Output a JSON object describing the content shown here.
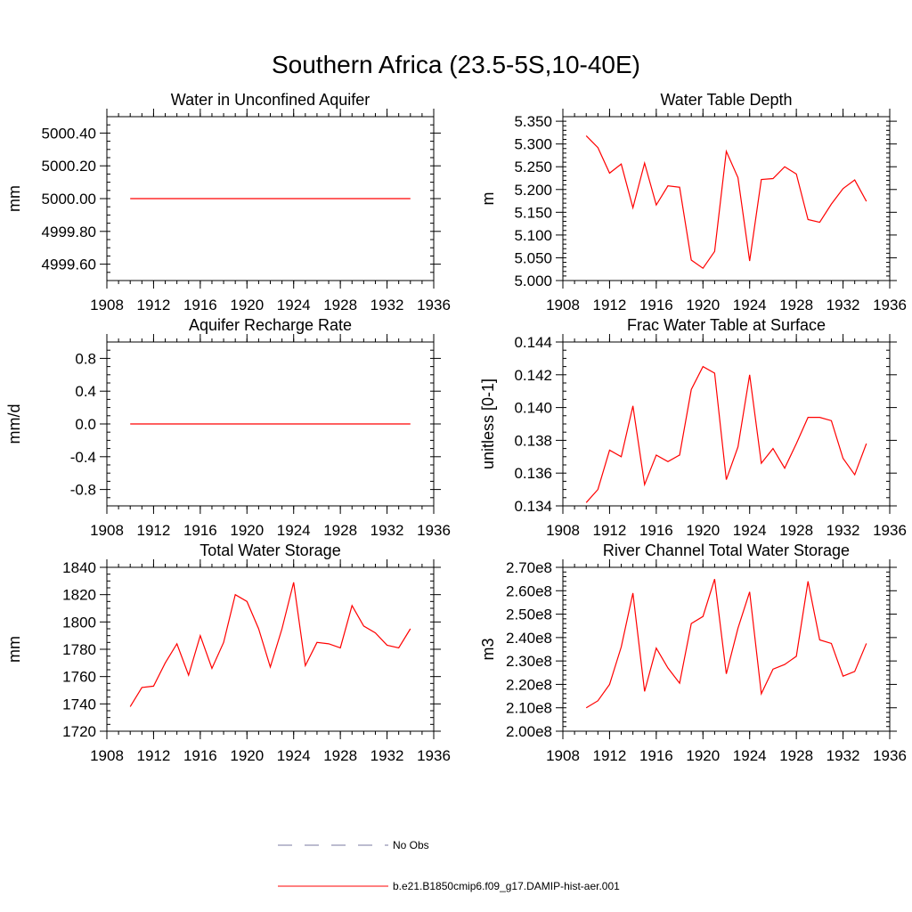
{
  "title": "Southern Africa (23.5-5S,10-40E)",
  "colors": {
    "series": "#ff0000",
    "obs": "#7a7aa0",
    "axis": "#000000"
  },
  "legend": [
    {
      "label": "No Obs",
      "style": "dashed",
      "color": "#7a7aa0"
    },
    {
      "label": "b.e21.B1850cmip6.f09_g17.DAMIP-hist-aer.001",
      "style": "solid",
      "color": "#ff0000"
    }
  ],
  "chart_data": [
    {
      "type": "line",
      "title": "Water in Unconfined Aquifer",
      "ylabel": "mm",
      "xlim": [
        1908,
        1936
      ],
      "ylim": [
        4999.5,
        5000.5
      ],
      "yticks": [
        4999.6,
        4999.8,
        5000.0,
        5000.2,
        5000.4
      ],
      "yticklabels": [
        "4999.60",
        "4999.80",
        "5000.00",
        "5000.20",
        "5000.40"
      ],
      "yminor": 0.05,
      "xticks": [
        1908,
        1912,
        1916,
        1920,
        1924,
        1928,
        1932,
        1936
      ],
      "x": [
        1910,
        1911,
        1912,
        1913,
        1914,
        1915,
        1916,
        1917,
        1918,
        1919,
        1920,
        1921,
        1922,
        1923,
        1924,
        1925,
        1926,
        1927,
        1928,
        1929,
        1930,
        1931,
        1932,
        1933,
        1934
      ],
      "series": [
        {
          "values": [
            5000.0,
            5000.0,
            5000.0,
            5000.0,
            5000.0,
            5000.0,
            5000.0,
            5000.0,
            5000.0,
            5000.0,
            5000.0,
            5000.0,
            5000.0,
            5000.0,
            5000.0,
            5000.0,
            5000.0,
            5000.0,
            5000.0,
            5000.0,
            5000.0,
            5000.0,
            5000.0,
            5000.0,
            5000.0
          ]
        }
      ]
    },
    {
      "type": "line",
      "title": "Water Table Depth",
      "ylabel": "m",
      "xlim": [
        1908,
        1936
      ],
      "ylim": [
        5.0,
        5.36
      ],
      "yticks": [
        5.0,
        5.05,
        5.1,
        5.15,
        5.2,
        5.25,
        5.3,
        5.35
      ],
      "yticklabels": [
        "5.000",
        "5.050",
        "5.100",
        "5.150",
        "5.200",
        "5.250",
        "5.300",
        "5.350"
      ],
      "yminor": 0.01,
      "xticks": [
        1908,
        1912,
        1916,
        1920,
        1924,
        1928,
        1932,
        1936
      ],
      "x": [
        1910,
        1911,
        1912,
        1913,
        1914,
        1915,
        1916,
        1917,
        1918,
        1919,
        1920,
        1921,
        1922,
        1923,
        1924,
        1925,
        1926,
        1927,
        1928,
        1929,
        1930,
        1931,
        1932,
        1933,
        1934
      ],
      "series": [
        {
          "values": [
            5.318,
            5.292,
            5.236,
            5.256,
            5.16,
            5.258,
            5.166,
            5.208,
            5.205,
            5.045,
            5.027,
            5.064,
            5.284,
            5.226,
            5.043,
            5.222,
            5.224,
            5.25,
            5.234,
            5.134,
            5.128,
            5.168,
            5.202,
            5.221,
            5.174
          ]
        }
      ]
    },
    {
      "type": "line",
      "title": "Aquifer Recharge Rate",
      "ylabel": "mm/d",
      "xlim": [
        1908,
        1936
      ],
      "ylim": [
        -1.0,
        1.0
      ],
      "yticks": [
        -0.8,
        -0.4,
        0.0,
        0.4,
        0.8
      ],
      "yticklabels": [
        "-0.8",
        "-0.4",
        "0.0",
        "0.4",
        "0.8"
      ],
      "yminor": 0.1,
      "xticks": [
        1908,
        1912,
        1916,
        1920,
        1924,
        1928,
        1932,
        1936
      ],
      "x": [
        1910,
        1911,
        1912,
        1913,
        1914,
        1915,
        1916,
        1917,
        1918,
        1919,
        1920,
        1921,
        1922,
        1923,
        1924,
        1925,
        1926,
        1927,
        1928,
        1929,
        1930,
        1931,
        1932,
        1933,
        1934
      ],
      "series": [
        {
          "values": [
            0,
            0,
            0,
            0,
            0,
            0,
            0,
            0,
            0,
            0,
            0,
            0,
            0,
            0,
            0,
            0,
            0,
            0,
            0,
            0,
            0,
            0,
            0,
            0,
            0
          ]
        }
      ]
    },
    {
      "type": "line",
      "title": "Frac Water Table at Surface",
      "ylabel": "unitless [0-1]",
      "xlim": [
        1908,
        1936
      ],
      "ylim": [
        0.134,
        0.144
      ],
      "yticks": [
        0.134,
        0.136,
        0.138,
        0.14,
        0.142,
        0.144
      ],
      "yticklabels": [
        "0.134",
        "0.136",
        "0.138",
        "0.140",
        "0.142",
        "0.144"
      ],
      "yminor": 0.0005,
      "xticks": [
        1908,
        1912,
        1916,
        1920,
        1924,
        1928,
        1932,
        1936
      ],
      "x": [
        1910,
        1911,
        1912,
        1913,
        1914,
        1915,
        1916,
        1917,
        1918,
        1919,
        1920,
        1921,
        1922,
        1923,
        1924,
        1925,
        1926,
        1927,
        1928,
        1929,
        1930,
        1931,
        1932,
        1933,
        1934
      ],
      "series": [
        {
          "values": [
            0.1342,
            0.135,
            0.1374,
            0.137,
            0.1401,
            0.1353,
            0.1371,
            0.1367,
            0.1371,
            0.1411,
            0.1425,
            0.1421,
            0.1356,
            0.1376,
            0.142,
            0.1366,
            0.1375,
            0.1363,
            0.1378,
            0.1394,
            0.1394,
            0.1392,
            0.1369,
            0.1359,
            0.1378
          ]
        }
      ]
    },
    {
      "type": "line",
      "title": "Total Water Storage",
      "ylabel": "mm",
      "xlim": [
        1908,
        1936
      ],
      "ylim": [
        1720,
        1840
      ],
      "yticks": [
        1720,
        1740,
        1760,
        1780,
        1800,
        1820,
        1840
      ],
      "yticklabels": [
        "1720",
        "1740",
        "1760",
        "1780",
        "1800",
        "1820",
        "1840"
      ],
      "yminor": 5,
      "xticks": [
        1908,
        1912,
        1916,
        1920,
        1924,
        1928,
        1932,
        1936
      ],
      "x": [
        1910,
        1911,
        1912,
        1913,
        1914,
        1915,
        1916,
        1917,
        1918,
        1919,
        1920,
        1921,
        1922,
        1923,
        1924,
        1925,
        1926,
        1927,
        1928,
        1929,
        1930,
        1931,
        1932,
        1933,
        1934
      ],
      "series": [
        {
          "values": [
            1738,
            1752,
            1753,
            1770,
            1784,
            1761,
            1790,
            1766,
            1785,
            1820,
            1815,
            1795,
            1767,
            1795,
            1829,
            1768,
            1785,
            1784,
            1781,
            1812,
            1797,
            1792,
            1783,
            1781,
            1795
          ]
        }
      ]
    },
    {
      "type": "line",
      "title": "River Channel Total Water Storage",
      "ylabel": "m3",
      "xlim": [
        1908,
        1936
      ],
      "ylim": [
        200000000,
        270000000
      ],
      "yticks": [
        200000000,
        210000000,
        220000000,
        230000000,
        240000000,
        250000000,
        260000000,
        270000000
      ],
      "yticklabels": [
        "2.00e8",
        "2.10e8",
        "2.20e8",
        "2.30e8",
        "2.40e8",
        "2.50e8",
        "2.60e8",
        "2.70e8"
      ],
      "yminor": 2000000,
      "xticks": [
        1908,
        1912,
        1916,
        1920,
        1924,
        1928,
        1932,
        1936
      ],
      "x": [
        1910,
        1911,
        1912,
        1913,
        1914,
        1915,
        1916,
        1917,
        1918,
        1919,
        1920,
        1921,
        1922,
        1923,
        1924,
        1925,
        1926,
        1927,
        1928,
        1929,
        1930,
        1931,
        1932,
        1933,
        1934
      ],
      "series": [
        {
          "values": [
            210000000,
            213000000,
            220000000,
            236000000,
            259000000,
            217000000,
            235500000,
            227000000,
            220500000,
            246000000,
            249000000,
            265000000,
            224500000,
            244000000,
            259500000,
            216000000,
            226500000,
            228500000,
            232000000,
            264000000,
            239000000,
            237500000,
            223500000,
            225500000,
            237500000
          ]
        }
      ]
    }
  ]
}
